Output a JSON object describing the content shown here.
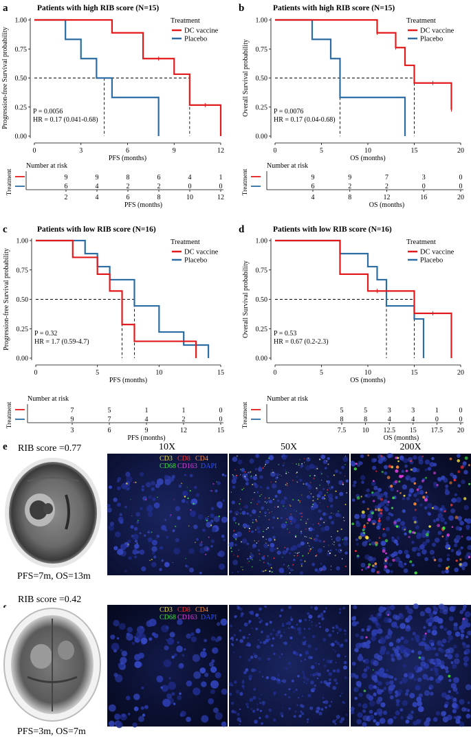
{
  "colors": {
    "dc": "#e31a1c",
    "placebo": "#2b6ca3",
    "grid": "#000000"
  },
  "panels": [
    {
      "letter": "a",
      "title": "Patients with high RIB score (N=15)",
      "ylabel": "Progression-free Survival probability",
      "xlabel": "PFS (months)",
      "xlim": [
        0,
        12
      ],
      "xticks": [
        0,
        3,
        6,
        9,
        12
      ],
      "yticks": [
        "0.00",
        "0.25",
        "0.50",
        "0.75",
        "1.00"
      ],
      "legend_title": "Treatment",
      "legend_items": [
        "DC vaccine",
        "Placebo"
      ],
      "stats": [
        "P = 0.0056",
        "HR = 0.17 (0.041-0.68)"
      ],
      "dc_steps": [
        [
          0,
          1
        ],
        [
          5,
          0.889
        ],
        [
          7,
          0.667
        ],
        [
          9,
          0.533
        ],
        [
          10,
          0.267
        ],
        [
          12,
          0
        ]
      ],
      "dc_end": 12,
      "dc_censor": [
        [
          8,
          0.667
        ],
        [
          11,
          0.267
        ]
      ],
      "placebo_steps": [
        [
          0,
          1
        ],
        [
          2,
          0.833
        ],
        [
          3,
          0.667
        ],
        [
          4,
          0.5
        ],
        [
          5,
          0.333
        ],
        [
          8,
          0
        ]
      ],
      "placebo_end": 8,
      "placebo_censor": [],
      "median_lines": [
        4.5,
        10
      ],
      "risk_title": "Number at risk",
      "risk_axis_label": "Treatment",
      "risk_xlabel": "PFS (months)",
      "risk_xticks": [
        "2",
        "4",
        "6",
        "8",
        "10",
        "12"
      ],
      "risk_dc": [
        "9",
        "9",
        "8",
        "6",
        "4",
        "1"
      ],
      "risk_placebo": [
        "6",
        "4",
        "2",
        "2",
        "0",
        "0"
      ]
    },
    {
      "letter": "b",
      "title": "Patients with high RIB score (N=15)",
      "ylabel": "Overall Survival probability",
      "xlabel": "OS (months)",
      "xlim": [
        0,
        20
      ],
      "xticks": [
        0,
        5,
        10,
        15,
        20
      ],
      "yticks": [
        "0.00",
        "0.25",
        "0.50",
        "0.75",
        "1.00"
      ],
      "legend_title": "Treatment",
      "legend_items": [
        "DC vaccine",
        "Placebo"
      ],
      "stats": [
        "P = 0.0076",
        "HR = 0.17 (0.04-0.68)"
      ],
      "dc_steps": [
        [
          0,
          1
        ],
        [
          11,
          0.889
        ],
        [
          13,
          0.762
        ],
        [
          14,
          0.609
        ],
        [
          15,
          0.457
        ],
        [
          19,
          0.228
        ]
      ],
      "dc_end": 19,
      "dc_censor": [
        [
          11,
          0.889
        ],
        [
          13,
          0.762
        ],
        [
          17,
          0.457
        ],
        [
          19,
          0.228
        ]
      ],
      "placebo_steps": [
        [
          0,
          1
        ],
        [
          4,
          0.833
        ],
        [
          6,
          0.667
        ],
        [
          7,
          0.333
        ],
        [
          14,
          0
        ]
      ],
      "placebo_end": 14,
      "placebo_censor": [],
      "median_lines": [
        7,
        15
      ],
      "risk_title": "Number at risk",
      "risk_axis_label": "Treatment",
      "risk_xlabel": "OS (months)",
      "risk_xticks": [
        "4",
        "8",
        "12",
        "16",
        "20"
      ],
      "risk_dc": [
        "9",
        "9",
        "7",
        "3",
        "0"
      ],
      "risk_placebo": [
        "6",
        "2",
        "2",
        "0",
        "0"
      ]
    },
    {
      "letter": "c",
      "title": "Patients with low RIB score (N=16)",
      "ylabel": "Progression-free Survival probability",
      "xlabel": "PFS (months)",
      "xlim": [
        0,
        15
      ],
      "xticks": [
        0,
        5,
        10,
        15
      ],
      "yticks": [
        "0.00",
        "0.25",
        "0.50",
        "0.75",
        "1.00"
      ],
      "legend_title": "Treatment",
      "legend_items": [
        "DC vaccine",
        "Placebo"
      ],
      "stats": [
        "P = 0.32",
        "HR = 1.7 (0.59-4.7)"
      ],
      "dc_steps": [
        [
          0,
          1
        ],
        [
          3,
          0.857
        ],
        [
          5,
          0.714
        ],
        [
          6,
          0.571
        ],
        [
          7,
          0.286
        ],
        [
          8,
          0.143
        ],
        [
          13,
          0
        ]
      ],
      "dc_end": 13,
      "dc_censor": [],
      "placebo_steps": [
        [
          0,
          1
        ],
        [
          4,
          0.889
        ],
        [
          5,
          0.778
        ],
        [
          6,
          0.667
        ],
        [
          8,
          0.444
        ],
        [
          10,
          0.222
        ],
        [
          12,
          0.111
        ],
        [
          14,
          0
        ]
      ],
      "placebo_end": 14,
      "placebo_censor": [],
      "median_lines": [
        7,
        8
      ],
      "risk_title": "Number at risk",
      "risk_axis_label": "Treatment",
      "risk_xlabel": "PFS (months)",
      "risk_xticks": [
        "3",
        "6",
        "9",
        "12",
        "15"
      ],
      "risk_dc": [
        "7",
        "5",
        "1",
        "1",
        "0"
      ],
      "risk_placebo": [
        "9",
        "7",
        "4",
        "2",
        "0"
      ]
    },
    {
      "letter": "d",
      "title": "Patients with low RIB score (N=16)",
      "ylabel": "Overall Survival probability",
      "xlabel": "OS (months)",
      "xlim": [
        0,
        20
      ],
      "xticks": [
        0,
        5,
        10,
        15,
        20
      ],
      "yticks": [
        "0.00",
        "0.25",
        "0.50",
        "0.75",
        "1.00"
      ],
      "legend_title": "Treatment",
      "legend_items": [
        "DC vaccine",
        "Placebo"
      ],
      "stats": [
        "P = 0.53",
        "HR = 0.67 (0.2-2.3)"
      ],
      "dc_steps": [
        [
          0,
          1
        ],
        [
          7,
          0.714
        ],
        [
          10,
          0.571
        ],
        [
          15,
          0.381
        ],
        [
          19,
          0
        ]
      ],
      "dc_end": 19,
      "dc_censor": [
        [
          11,
          0.571
        ],
        [
          17,
          0.381
        ]
      ],
      "placebo_steps": [
        [
          0,
          1
        ],
        [
          7,
          0.889
        ],
        [
          10,
          0.778
        ],
        [
          11,
          0.667
        ],
        [
          12,
          0.444
        ],
        [
          15,
          0.333
        ],
        [
          16,
          0
        ]
      ],
      "placebo_end": 16,
      "placebo_censor": [],
      "median_lines": [
        12,
        15
      ],
      "risk_title": "Number at risk",
      "risk_axis_label": "Treatment",
      "risk_xlabel": "OS (months)",
      "risk_xticks": [
        "7.5",
        "10",
        "12.5",
        "15",
        "17.5",
        "20"
      ],
      "risk_dc": [
        "5",
        "5",
        "3",
        "3",
        "1",
        "0"
      ],
      "risk_placebo": [
        "8",
        "8",
        "4",
        "4",
        "0",
        "0"
      ]
    }
  ],
  "chart_data": [
    {
      "type": "line",
      "title": "Patients with high RIB score (N=15)",
      "xlabel": "PFS (months)",
      "ylabel": "Progression-free Survival probability",
      "xlim": [
        0,
        12
      ],
      "ylim": [
        0,
        1
      ],
      "series": [
        {
          "name": "DC vaccine",
          "x": [
            0,
            5,
            7,
            9,
            10,
            12
          ],
          "y": [
            1,
            0.889,
            0.667,
            0.533,
            0.267,
            0
          ]
        },
        {
          "name": "Placebo",
          "x": [
            0,
            2,
            3,
            4,
            5,
            8
          ],
          "y": [
            1,
            0.833,
            0.667,
            0.5,
            0.333,
            0
          ]
        }
      ]
    },
    {
      "type": "line",
      "title": "Patients with high RIB score (N=15)",
      "xlabel": "OS (months)",
      "ylabel": "Overall Survival probability",
      "xlim": [
        0,
        20
      ],
      "ylim": [
        0,
        1
      ],
      "series": [
        {
          "name": "DC vaccine",
          "x": [
            0,
            11,
            13,
            14,
            15,
            19
          ],
          "y": [
            1,
            0.889,
            0.762,
            0.609,
            0.457,
            0.228
          ]
        },
        {
          "name": "Placebo",
          "x": [
            0,
            4,
            6,
            7,
            14
          ],
          "y": [
            1,
            0.833,
            0.667,
            0.333,
            0
          ]
        }
      ]
    },
    {
      "type": "line",
      "title": "Patients with low RIB score (N=16)",
      "xlabel": "PFS (months)",
      "ylabel": "Progression-free Survival probability",
      "xlim": [
        0,
        15
      ],
      "ylim": [
        0,
        1
      ],
      "series": [
        {
          "name": "DC vaccine",
          "x": [
            0,
            3,
            5,
            6,
            7,
            8,
            13
          ],
          "y": [
            1,
            0.857,
            0.714,
            0.571,
            0.286,
            0.143,
            0
          ]
        },
        {
          "name": "Placebo",
          "x": [
            0,
            4,
            5,
            6,
            8,
            10,
            12,
            14
          ],
          "y": [
            1,
            0.889,
            0.778,
            0.667,
            0.444,
            0.222,
            0.111,
            0
          ]
        }
      ]
    },
    {
      "type": "line",
      "title": "Patients with low RIB score (N=16)",
      "xlabel": "OS (months)",
      "ylabel": "Overall Survival probability",
      "xlim": [
        0,
        20
      ],
      "ylim": [
        0,
        1
      ],
      "series": [
        {
          "name": "DC vaccine",
          "x": [
            0,
            7,
            10,
            15,
            19
          ],
          "y": [
            1,
            0.714,
            0.571,
            0.381,
            0
          ]
        },
        {
          "name": "Placebo",
          "x": [
            0,
            7,
            10,
            11,
            12,
            15,
            16
          ],
          "y": [
            1,
            0.889,
            0.778,
            0.667,
            0.444,
            0.333,
            0
          ]
        }
      ]
    }
  ],
  "imaging": {
    "row_e": {
      "letter": "e",
      "rib": "RIB score =0.77",
      "outcome": "PFS=7m, OS=13m"
    },
    "row_f": {
      "letter": "f",
      "rib": "RIB score =0.42",
      "outcome": "PFS=3m, OS=7m"
    },
    "magnifications": [
      "10X",
      "50X",
      "200X"
    ],
    "markers_row1": [
      "CD3",
      "CD8",
      "CD4"
    ],
    "markers_row2": [
      "CD68",
      "CD163",
      "DAPI"
    ],
    "marker_colors": [
      "#f0e040",
      "#ff3030",
      "#ff8a3c",
      "#40e040",
      "#e040e0",
      "#3050ff"
    ]
  }
}
